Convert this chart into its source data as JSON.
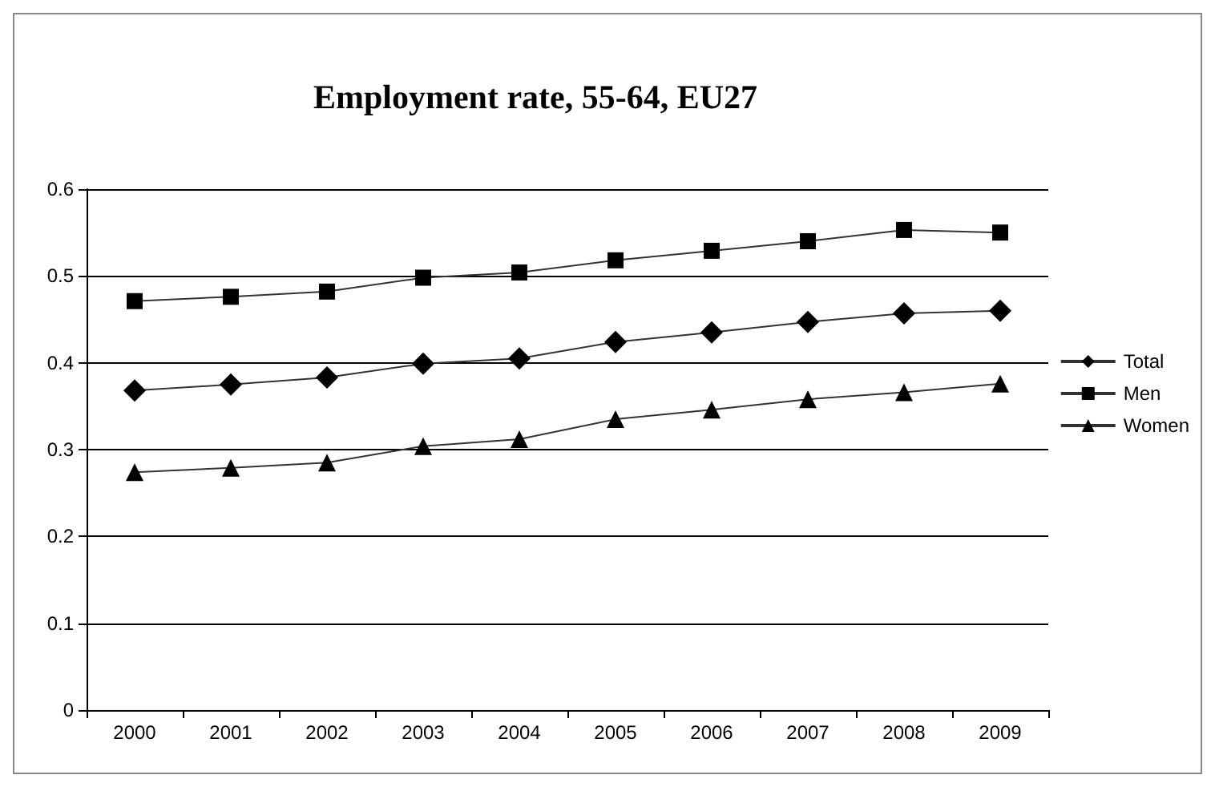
{
  "chart_data": {
    "type": "line",
    "title": "Employment rate, 55-64, EU27",
    "categories": [
      "2000",
      "2001",
      "2002",
      "2003",
      "2004",
      "2005",
      "2006",
      "2007",
      "2008",
      "2009"
    ],
    "series": [
      {
        "name": "Total",
        "color": "#000000",
        "marker": "diamond",
        "values": [
          0.368,
          0.375,
          0.383,
          0.399,
          0.405,
          0.424,
          0.435,
          0.447,
          0.457,
          0.46
        ]
      },
      {
        "name": "Men",
        "color": "#000000",
        "marker": "square",
        "values": [
          0.471,
          0.476,
          0.482,
          0.498,
          0.504,
          0.518,
          0.529,
          0.54,
          0.553,
          0.55
        ]
      },
      {
        "name": "Women",
        "color": "#000000",
        "marker": "triangle",
        "values": [
          0.274,
          0.279,
          0.285,
          0.304,
          0.312,
          0.335,
          0.346,
          0.358,
          0.366,
          0.376
        ]
      }
    ],
    "ylim": [
      0,
      0.6
    ],
    "yticks": [
      0,
      0.1,
      0.2,
      0.3,
      0.4,
      0.5,
      0.6
    ],
    "grid": "y",
    "legend": "right",
    "line_style": "solid"
  }
}
